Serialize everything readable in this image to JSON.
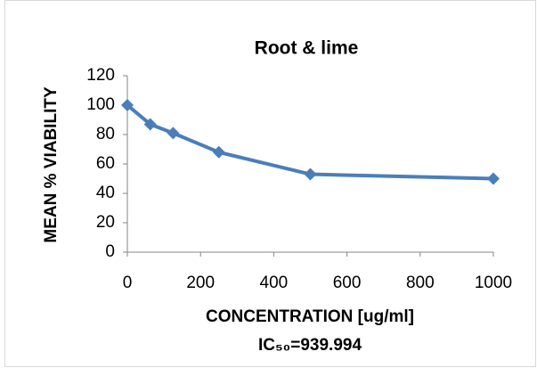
{
  "chart_data": {
    "type": "line",
    "title": "Root & lime",
    "x_label": "CONCENTRATION [ug/ml]",
    "y_label": "MEAN % VIABILITY",
    "annotation": "IC₅₀=939.994",
    "x": [
      0,
      62.5,
      125,
      250,
      500,
      1000
    ],
    "series": [
      {
        "name": "Root & lime",
        "color": "#4a7ebb",
        "values": [
          100,
          87,
          81,
          68,
          53,
          50
        ]
      }
    ],
    "xlim": [
      0,
      1000
    ],
    "xticks": [
      0,
      200,
      400,
      600,
      800,
      1000
    ],
    "ylim": [
      0,
      120
    ],
    "yticks": [
      0,
      20,
      40,
      60,
      80,
      100,
      120
    ],
    "grid": false,
    "legend": false
  }
}
